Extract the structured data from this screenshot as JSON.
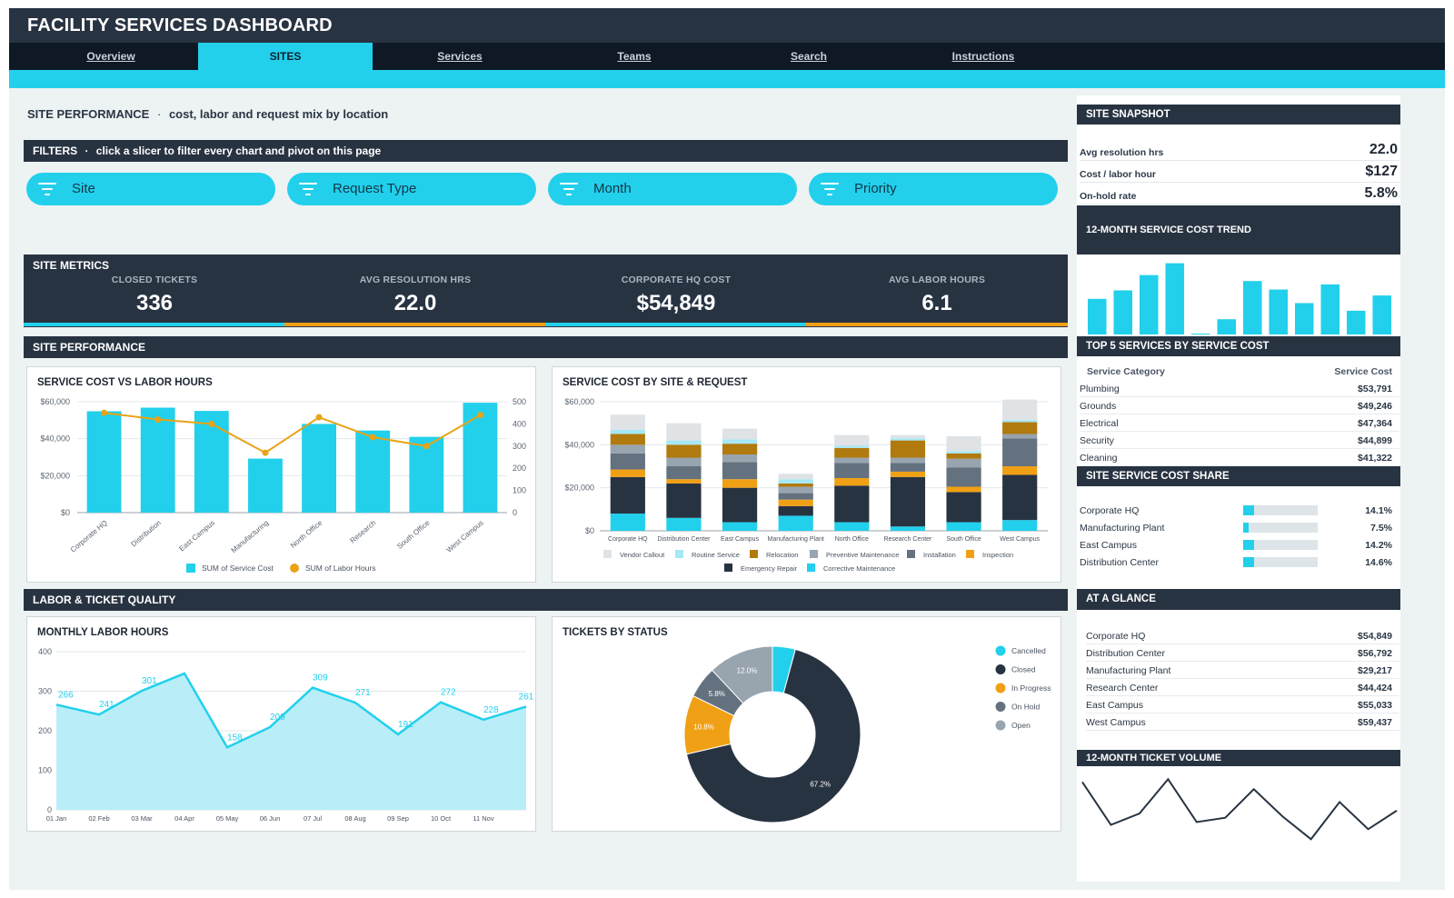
{
  "title": "FACILITY SERVICES DASHBOARD",
  "tabs": [
    {
      "label": "Overview"
    },
    {
      "label": "SITES"
    },
    {
      "label": "Services"
    },
    {
      "label": "Teams"
    },
    {
      "label": "Search"
    },
    {
      "label": "Instructions"
    }
  ],
  "active_tab": "SITES",
  "page_heading": {
    "title": "SITE PERFORMANCE",
    "separator": "·",
    "subtitle": "cost, labor and request mix by location"
  },
  "filters": {
    "header": "FILTERS",
    "separator": "·",
    "hint": "click a slicer to filter every chart and pivot on this page",
    "slicers": [
      {
        "label": "Site"
      },
      {
        "label": "Request Type"
      },
      {
        "label": "Month"
      },
      {
        "label": "Priority"
      }
    ]
  },
  "site_metrics": {
    "header": "SITE METRICS",
    "items": [
      {
        "label": "CLOSED TICKETS",
        "value": "336"
      },
      {
        "label": "AVG RESOLUTION HRS",
        "value": "22.0"
      },
      {
        "label": "CORPORATE HQ COST",
        "value": "$54,849"
      },
      {
        "label": "AVG LABOR HOURS",
        "value": "6.1"
      }
    ]
  },
  "site_performance_header": "SITE PERFORMANCE",
  "labor_quality_header": "LABOR & TICKET QUALITY",
  "colors": {
    "accent": "#22d0ec",
    "dark": "#283342",
    "orange": "#f0a015",
    "gray": "#98a4ae",
    "navy": "#0f1825"
  },
  "chart_data": [
    {
      "type": "bar",
      "title": "SERVICE COST VS LABOR HOURS",
      "categories": [
        "Corporate HQ",
        "Distribution",
        "East Campus",
        "Manufacturing",
        "North Office",
        "Research",
        "South Office",
        "West Campus"
      ],
      "series": [
        {
          "name": "SUM of Service Cost",
          "type": "bar",
          "axis": "left",
          "color": "#22d0ec",
          "values": [
            54849,
            56792,
            55033,
            29217,
            48000,
            44424,
            41000,
            59437
          ]
        },
        {
          "name": "SUM of Labor Hours",
          "type": "line",
          "axis": "right",
          "color": "#e8a317",
          "values": [
            450,
            420,
            400,
            270,
            430,
            340,
            300,
            440
          ]
        }
      ],
      "ylim": [
        0,
        60000
      ],
      "y_ticks": [
        "$0",
        "$20,000",
        "$40,000",
        "$60,000"
      ],
      "y2lim": [
        0,
        500
      ],
      "y2_ticks": [
        "0",
        "100",
        "200",
        "300",
        "400",
        "500"
      ],
      "legend": "bottom"
    },
    {
      "type": "bar",
      "stacked": true,
      "title": "SERVICE COST BY SITE & REQUEST",
      "categories": [
        "Corporate HQ",
        "Distribution Center",
        "East Campus",
        "Manufacturing Plant",
        "North Office",
        "Research Center",
        "South Office",
        "West Campus"
      ],
      "series": [
        {
          "name": "Corrective Maintenance",
          "color": "#22d0ec",
          "values": [
            8000,
            6000,
            4000,
            7000,
            4000,
            2000,
            4000,
            5000
          ]
        },
        {
          "name": "Emergency Repair",
          "color": "#283342",
          "values": [
            17000,
            16000,
            16000,
            4500,
            17000,
            23000,
            14000,
            21000
          ]
        },
        {
          "name": "Inspection",
          "color": "#f0a015",
          "values": [
            3500,
            2000,
            4000,
            3000,
            3500,
            2500,
            2500,
            4000
          ]
        },
        {
          "name": "Installation",
          "color": "#64717f",
          "values": [
            7500,
            6000,
            8000,
            3000,
            7000,
            4000,
            9000,
            13000
          ]
        },
        {
          "name": "Preventive Maintenance",
          "color": "#98a4ae",
          "values": [
            4000,
            4000,
            3500,
            3000,
            2500,
            2500,
            4000,
            2000
          ]
        },
        {
          "name": "Relocation",
          "color": "#b07a0e",
          "values": [
            5000,
            6000,
            5000,
            1500,
            4500,
            8000,
            2500,
            5500
          ]
        },
        {
          "name": "Routine Service",
          "color": "#a6e8f5",
          "values": [
            2000,
            2000,
            2000,
            2000,
            1000,
            1000,
            1000,
            1000
          ]
        },
        {
          "name": "Vendor Callout",
          "color": "#dfe3e6",
          "values": [
            7000,
            8000,
            5000,
            2500,
            5000,
            1500,
            7000,
            9500
          ]
        }
      ],
      "legend_order": [
        "Vendor Callout",
        "Routine Service",
        "Relocation",
        "Preventive Maintenance",
        "Installation",
        "Inspection",
        "Emergency Repair",
        "Corrective Maintenance"
      ],
      "ylim": [
        0,
        60000
      ],
      "y_ticks": [
        "$0",
        "$20,000",
        "$40,000",
        "$60,000"
      ],
      "legend": "bottom"
    },
    {
      "type": "area",
      "title": "MONTHLY LABOR HOURS",
      "x": [
        "01 Jan",
        "02 Feb",
        "03 Mar",
        "04 Apr",
        "05 May",
        "06 Jun",
        "07 Jul",
        "08 Aug",
        "09 Sep",
        "10 Oct",
        "11 Nov",
        ""
      ],
      "values": [
        266,
        241,
        301,
        345,
        158,
        209,
        309,
        271,
        191,
        272,
        228,
        261
      ],
      "labels": [
        "266",
        "241",
        "301",
        "",
        "158",
        "209",
        "309",
        "271",
        "191",
        "272",
        "228",
        "261"
      ],
      "ylim": [
        0,
        400
      ],
      "y_ticks": [
        "0",
        "100",
        "200",
        "300",
        "400"
      ],
      "color": "#22d0ec"
    },
    {
      "type": "pie",
      "donut": true,
      "title": "TICKETS BY STATUS",
      "slices": [
        {
          "name": "Cancelled",
          "value": 4.2,
          "color": "#22d0ec",
          "label": ""
        },
        {
          "name": "Closed",
          "value": 67.2,
          "color": "#283342",
          "label": "67.2%"
        },
        {
          "name": "In Progress",
          "value": 10.8,
          "color": "#f0a015",
          "label": "10.8%"
        },
        {
          "name": "On Hold",
          "value": 5.8,
          "color": "#64717f",
          "label": "5.8%"
        },
        {
          "name": "Open",
          "value": 12.0,
          "color": "#98a4ae",
          "label": "12.0%"
        }
      ],
      "legend": "right"
    },
    {
      "type": "bar",
      "title": "12-MONTH SERVICE COST TREND",
      "values": [
        42,
        52,
        70,
        84,
        1,
        18,
        63,
        53,
        37,
        59,
        28,
        46
      ],
      "ylim": [
        0,
        90
      ],
      "color": "#22d0ec"
    },
    {
      "type": "line",
      "title": "12-MONTH TICKET VOLUME",
      "values": [
        50,
        20,
        28,
        52,
        22,
        25,
        45,
        26,
        10,
        36,
        17,
        30
      ],
      "ylim": [
        0,
        56
      ],
      "color": "#283342"
    }
  ],
  "sidebar": {
    "snapshot": {
      "header": "SITE SNAPSHOT",
      "items": [
        {
          "label": "Avg resolution hrs",
          "value": "22.0"
        },
        {
          "label": "Cost / labor hour",
          "value": "$127"
        },
        {
          "label": "On-hold rate",
          "value": "5.8%"
        }
      ]
    },
    "trend_header": "12-MONTH SERVICE COST TREND",
    "top5": {
      "header": "TOP 5 SERVICES BY SERVICE COST",
      "col1": "Service Category",
      "col2": "Service Cost",
      "rows": [
        {
          "k": "Plumbing",
          "v": "$53,791"
        },
        {
          "k": "Grounds",
          "v": "$49,246"
        },
        {
          "k": "Electrical",
          "v": "$47,364"
        },
        {
          "k": "Security",
          "v": "$44,899"
        },
        {
          "k": "Cleaning",
          "v": "$41,322"
        }
      ]
    },
    "share": {
      "header": "SITE SERVICE COST SHARE",
      "rows": [
        {
          "k": "Corporate HQ",
          "v": "14.1%",
          "pct": 14.1
        },
        {
          "k": "Manufacturing Plant",
          "v": "7.5%",
          "pct": 7.5
        },
        {
          "k": "East Campus",
          "v": "14.2%",
          "pct": 14.2
        },
        {
          "k": "Distribution Center",
          "v": "14.6%",
          "pct": 14.6
        }
      ]
    },
    "glance": {
      "header": "AT A GLANCE",
      "rows": [
        {
          "k": "Corporate HQ",
          "v": "$54,849"
        },
        {
          "k": "Distribution Center",
          "v": "$56,792"
        },
        {
          "k": "Manufacturing Plant",
          "v": "$29,217"
        },
        {
          "k": "Research Center",
          "v": "$44,424"
        },
        {
          "k": "East Campus",
          "v": "$55,033"
        },
        {
          "k": "West Campus",
          "v": "$59,437"
        }
      ]
    },
    "volume_header": "12-MONTH TICKET VOLUME"
  }
}
